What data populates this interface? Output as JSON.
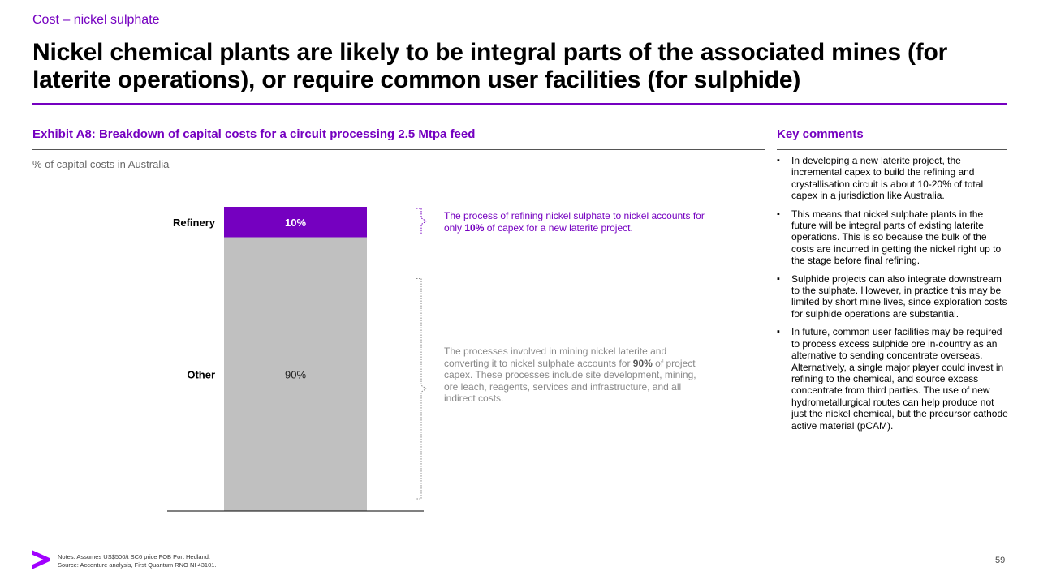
{
  "header": {
    "kicker": "Cost – nickel sulphate",
    "title": "Nickel chemical plants are likely to be integral parts of the associated mines (for laterite operations), or require common user facilities (for sulphide)"
  },
  "exhibit": {
    "title": "Exhibit A8: Breakdown of capital costs for a circuit processing 2.5 Mtpa feed",
    "subtitle": "% of capital costs in Australia"
  },
  "chart_data": {
    "type": "bar",
    "stacked": true,
    "categories": [
      "Refinery",
      "Other"
    ],
    "values": [
      10,
      90
    ],
    "data_labels": [
      "10%",
      "90%"
    ],
    "colors": [
      "#7500c0",
      "#c0c0c0"
    ],
    "ylim": [
      0,
      100
    ],
    "grid": false
  },
  "annotations": {
    "top": {
      "before": "The process of refining nickel sulphate to nickel accounts for only ",
      "bold": "10%",
      "after": " of capex for a new laterite project."
    },
    "bottom": {
      "before": "The processes involved in mining nickel laterite and converting it to nickel sulphate accounts for ",
      "bold": "90%",
      "after": " of project capex. These processes include site development, mining, ore leach, reagents, services and infrastructure, and all indirect costs."
    }
  },
  "comments": {
    "title": "Key comments",
    "items": [
      "In developing a new laterite project, the incremental capex to build the refining and crystallisation circuit is about 10-20% of total capex in a jurisdiction like Australia.",
      "This means that nickel sulphate plants in the future will be integral parts of existing laterite operations. This is so because the bulk of the costs are incurred in getting the nickel right up to the stage before final refining.",
      "Sulphide projects can also integrate downstream to the sulphate. However, in practice this may be limited by short mine lives, since exploration costs for sulphide operations are substantial.",
      "In future, common user facilities may be required to process excess sulphide ore in-country as an alternative to sending concentrate overseas. Alternatively, a single major player could invest in refining to the chemical, and source excess concentrate from third parties. The use of new hydrometallurgical routes can help produce not just the nickel chemical, but the precursor cathode active material (pCAM)."
    ]
  },
  "footer": {
    "notes": "Notes: Assumes US$500/t SC6 price FOB Port Hedland.",
    "source": "Source: Accenture analysis, First Quantum RNO NI 43101.",
    "page_number": "59",
    "logo_icon": "accenture-chevron-icon"
  }
}
